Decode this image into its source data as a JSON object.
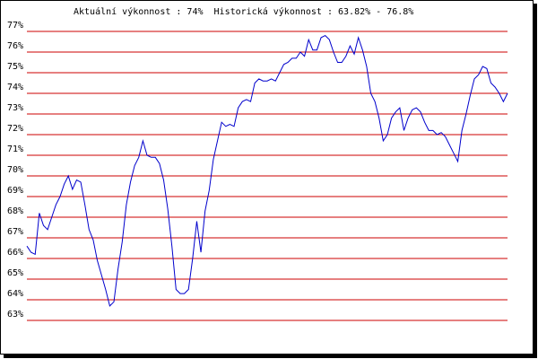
{
  "chart_data": {
    "type": "line",
    "title": "Aktuální výkonnost : 74%  Historická výkonnost : 63.82% - 76.8%",
    "series": [
      {
        "color": "#0000cc",
        "values": [
          66.6,
          66.3,
          66.2,
          68.2,
          67.6,
          67.4,
          68.0,
          68.6,
          69.0,
          69.6,
          70.0,
          69.35,
          69.8,
          69.7,
          68.6,
          67.4,
          66.9,
          65.9,
          65.2,
          64.5,
          63.7,
          63.9,
          65.5,
          66.8,
          68.6,
          69.7,
          70.5,
          70.9,
          71.7,
          71.0,
          70.9,
          70.9,
          70.6,
          69.8,
          68.4,
          66.6,
          64.5,
          64.3,
          64.3,
          64.5,
          66.0,
          67.8,
          66.3,
          68.3,
          69.3,
          70.8,
          71.7,
          72.6,
          72.4,
          72.5,
          72.4,
          73.3,
          73.6,
          73.7,
          73.6,
          74.5,
          74.7,
          74.6,
          74.6,
          74.7,
          74.6,
          75.0,
          75.4,
          75.5,
          75.7,
          75.7,
          76.0,
          75.8,
          76.6,
          76.1,
          76.1,
          76.7,
          76.8,
          76.6,
          76.0,
          75.5,
          75.5,
          75.8,
          76.3,
          75.9,
          76.7,
          76.1,
          75.3,
          74.0,
          73.6,
          72.8,
          71.7,
          72.0,
          72.8,
          73.1,
          73.3,
          72.2,
          72.8,
          73.2,
          73.3,
          73.1,
          72.6,
          72.2,
          72.2,
          72.0,
          72.1,
          71.9,
          71.5,
          71.1,
          70.7,
          72.2,
          73.0,
          73.9,
          74.7,
          74.9,
          75.3,
          75.2,
          74.5,
          74.3,
          74.0,
          73.6,
          74.0
        ]
      }
    ],
    "ylim": [
      63,
      77
    ],
    "yticks": [
      {
        "value": 63,
        "label": "63%"
      },
      {
        "value": 64,
        "label": "64%"
      },
      {
        "value": 65,
        "label": "65%"
      },
      {
        "value": 66,
        "label": "66%"
      },
      {
        "value": 67,
        "label": "67%"
      },
      {
        "value": 68,
        "label": "68%"
      },
      {
        "value": 69,
        "label": "69%"
      },
      {
        "value": 70,
        "label": "70%"
      },
      {
        "value": 71,
        "label": "71%"
      },
      {
        "value": 72,
        "label": "72%"
      },
      {
        "value": 73,
        "label": "73%"
      },
      {
        "value": 74,
        "label": "74%"
      },
      {
        "value": 75,
        "label": "75%"
      },
      {
        "value": 76,
        "label": "76%"
      },
      {
        "value": 77,
        "label": "77%"
      }
    ],
    "grid": true,
    "grid_color": "#cc0000"
  }
}
